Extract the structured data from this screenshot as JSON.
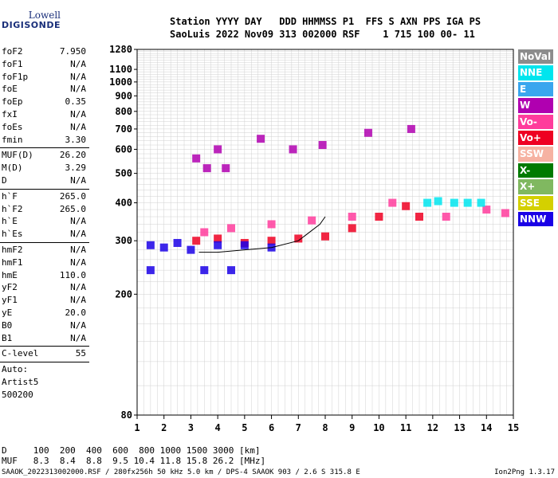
{
  "logo": {
    "line1": "Lowell",
    "line2": "DIGISONDE"
  },
  "header": {
    "line1": "Station YYYY DAY   DDD HHMMSS P1  FFS S AXN PPS IGA PS",
    "line2": "SaoLuis 2022 Nov09 313 002000 RSF    1 715 100 00- 11"
  },
  "params_group1": [
    {
      "name": "foF2",
      "value": "7.950"
    },
    {
      "name": "foF1",
      "value": "N/A"
    },
    {
      "name": "foF1p",
      "value": "N/A"
    },
    {
      "name": "foE",
      "value": "N/A"
    },
    {
      "name": "foEp",
      "value": "0.35"
    },
    {
      "name": "fxI",
      "value": "N/A"
    },
    {
      "name": "foEs",
      "value": "N/A"
    },
    {
      "name": "fmin",
      "value": "3.30"
    }
  ],
  "params_group2": [
    {
      "name": "MUF(D)",
      "value": "26.20"
    },
    {
      "name": "M(D)",
      "value": "3.29"
    },
    {
      "name": "D",
      "value": "N/A"
    }
  ],
  "params_group3": [
    {
      "name": "h`F",
      "value": "265.0"
    },
    {
      "name": "h`F2",
      "value": "265.0"
    },
    {
      "name": "h`E",
      "value": "N/A"
    },
    {
      "name": "h`Es",
      "value": "N/A"
    }
  ],
  "params_group4": [
    {
      "name": "hmF2",
      "value": "N/A"
    },
    {
      "name": "hmF1",
      "value": "N/A"
    },
    {
      "name": "hmE",
      "value": "110.0"
    },
    {
      "name": "yF2",
      "value": "N/A"
    },
    {
      "name": "yF1",
      "value": "N/A"
    },
    {
      "name": "yE",
      "value": "20.0"
    },
    {
      "name": "B0",
      "value": "N/A"
    },
    {
      "name": "B1",
      "value": "N/A"
    }
  ],
  "clevel": {
    "name": "C-level",
    "value": "55"
  },
  "auto": {
    "label": "Auto:",
    "artist": "Artist5",
    "code": "500200"
  },
  "legend": [
    {
      "label": "NoVal",
      "color": "#8c8c8c"
    },
    {
      "label": "NNE",
      "color": "#00e5ee"
    },
    {
      "label": "E",
      "color": "#3aa6ee"
    },
    {
      "label": "W",
      "color": "#b000b0"
    },
    {
      "label": "Vo-",
      "color": "#ff3c9c"
    },
    {
      "label": "Vo+",
      "color": "#ee0022"
    },
    {
      "label": "SSW",
      "color": "#f6b2a2"
    },
    {
      "label": "X-",
      "color": "#007a00"
    },
    {
      "label": "X+",
      "color": "#80b860"
    },
    {
      "label": "SSE",
      "color": "#d4d000"
    },
    {
      "label": "NNW",
      "color": "#1a00e6"
    }
  ],
  "footer": {
    "line1": "D     100  200  400  600  800 1000 1500 3000 [km]",
    "line2": "MUF   8.3  8.4  8.8  9.5 10.4 11.8 15.8 26.2 [MHz]",
    "line3": "SAAOK_2022313002000.RSF / 280fx256h 50 kHz 5.0 km / DPS-4 SAAOK 903 / 2.6 S 315.8 E",
    "version": "Ion2Png 1.3.17"
  },
  "chart_data": {
    "type": "scatter",
    "x_ticks": [
      1,
      2,
      3,
      4,
      5,
      6,
      7,
      8,
      9,
      10,
      11,
      12,
      13,
      14,
      15
    ],
    "y_ticks": [
      80,
      200,
      300,
      400,
      500,
      600,
      700,
      800,
      900,
      1000,
      1100,
      1280
    ],
    "xlim": [
      1,
      15
    ],
    "ylim": [
      80,
      1280
    ],
    "y_scale": "log",
    "grid": true,
    "series": [
      {
        "name": "Vo+",
        "color": "#ee0022",
        "points": [
          [
            3.2,
            300
          ],
          [
            4,
            305
          ],
          [
            5,
            295
          ],
          [
            6,
            300
          ],
          [
            7,
            305
          ],
          [
            8,
            310
          ],
          [
            9,
            330
          ],
          [
            10,
            360
          ],
          [
            11,
            390
          ],
          [
            11.5,
            360
          ]
        ]
      },
      {
        "name": "Vo-",
        "color": "#ff3c9c",
        "points": [
          [
            3.5,
            320
          ],
          [
            4.5,
            330
          ],
          [
            6,
            340
          ],
          [
            7.5,
            350
          ],
          [
            9,
            360
          ],
          [
            10.5,
            400
          ],
          [
            12.5,
            360
          ],
          [
            14,
            380
          ],
          [
            14.7,
            370
          ]
        ]
      },
      {
        "name": "W",
        "color": "#b000b0",
        "points": [
          [
            3.2,
            560
          ],
          [
            3.6,
            520
          ],
          [
            4,
            600
          ],
          [
            4.3,
            520
          ],
          [
            5.6,
            650
          ],
          [
            6.8,
            600
          ],
          [
            7.9,
            620
          ],
          [
            9.6,
            680
          ],
          [
            11.2,
            700
          ]
        ]
      },
      {
        "name": "NNW",
        "color": "#1a00e6",
        "points": [
          [
            1.5,
            290
          ],
          [
            2,
            285
          ],
          [
            2.5,
            295
          ],
          [
            3,
            280
          ],
          [
            4,
            290
          ],
          [
            5,
            290
          ],
          [
            6,
            285
          ],
          [
            1.5,
            240
          ],
          [
            3.5,
            240
          ],
          [
            4.5,
            240
          ]
        ]
      },
      {
        "name": "NNE",
        "color": "#00e5ee",
        "points": [
          [
            11.8,
            400
          ],
          [
            12.2,
            405
          ],
          [
            12.8,
            400
          ],
          [
            13.3,
            400
          ],
          [
            13.8,
            400
          ]
        ]
      }
    ],
    "fit_curve": [
      [
        3.3,
        275
      ],
      [
        4,
        275
      ],
      [
        5,
        280
      ],
      [
        6,
        285
      ],
      [
        7,
        300
      ],
      [
        7.8,
        340
      ],
      [
        8,
        360
      ]
    ]
  }
}
